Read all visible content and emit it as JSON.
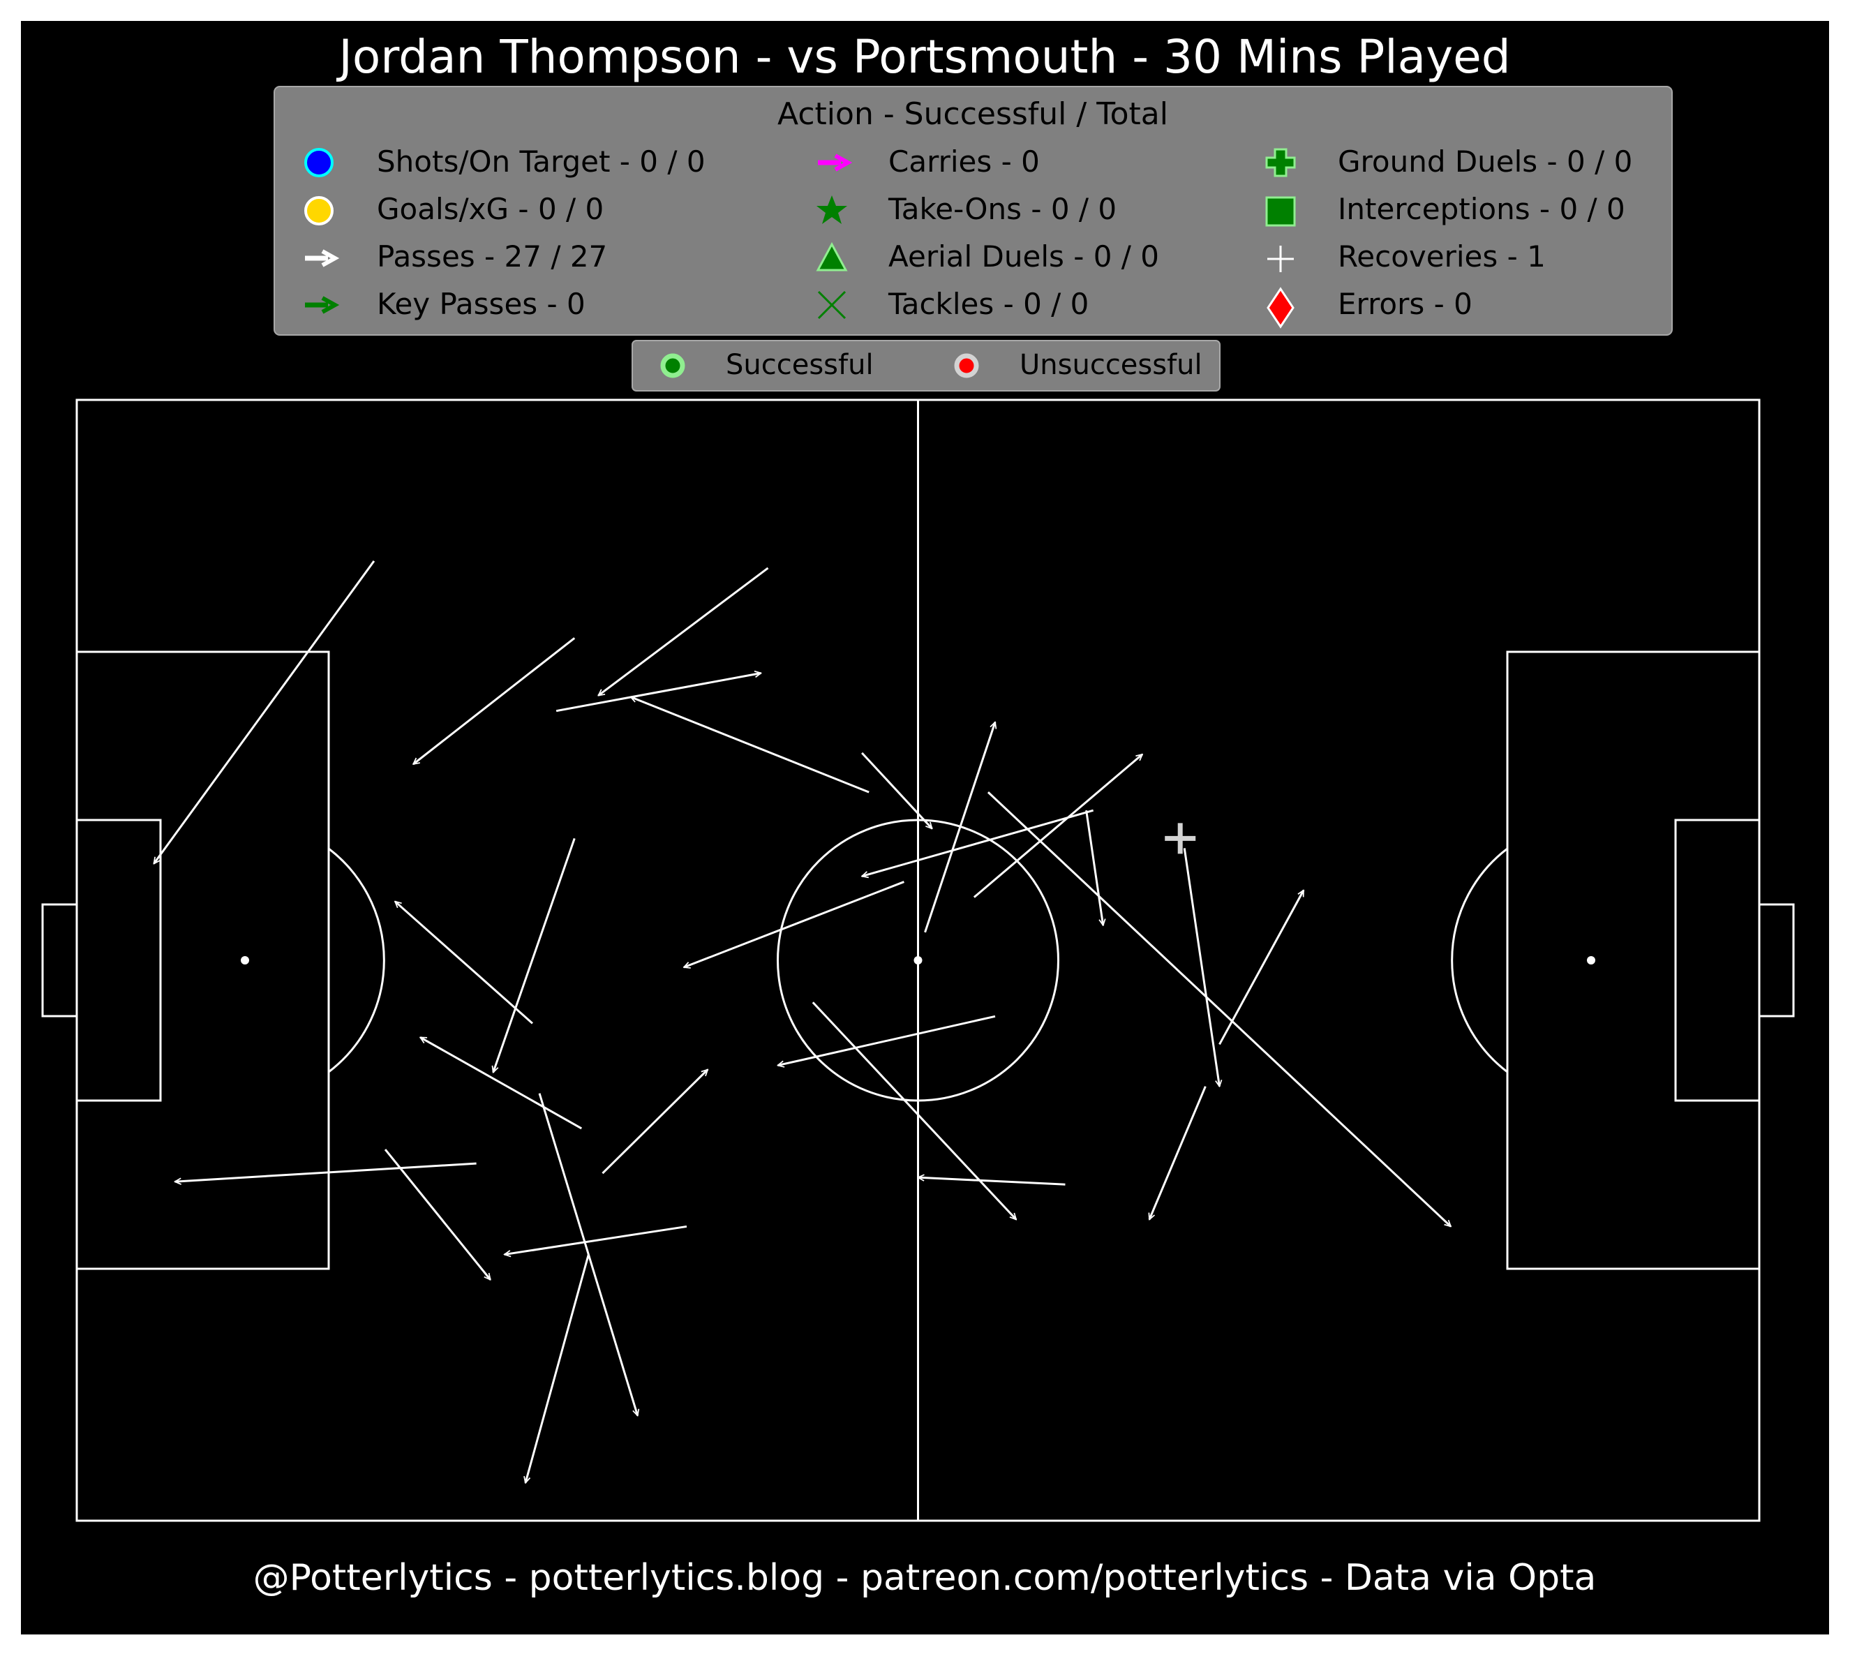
{
  "title": "Jordan Thompson - vs Portsmouth - 30 Mins Played",
  "footer": "@Potterlytics - potterlytics.blog - patreon.com/potterlytics - Data via Opta",
  "legend": {
    "title": "Action - Successful / Total",
    "items": [
      {
        "label": "Shots/On Target - 0 / 0",
        "icon": "blue-circle-icon",
        "color": "#0000ff"
      },
      {
        "label": "Goals/xG - 0 / 0",
        "icon": "gold-circle-icon",
        "color": "#ffd700"
      },
      {
        "label": "Passes - 27 / 27",
        "icon": "white-arrow-icon",
        "color": "#ffffff"
      },
      {
        "label": "Key Passes - 0",
        "icon": "green-arrow-icon",
        "color": "#008000"
      },
      {
        "label": "Carries - 0",
        "icon": "magenta-arrow-icon",
        "color": "#ff00ff"
      },
      {
        "label": "Take-Ons - 0 / 0",
        "icon": "green-star-icon",
        "color": "#008000"
      },
      {
        "label": "Aerial Duels - 0 / 0",
        "icon": "green-triangle-icon",
        "color": "#008000"
      },
      {
        "label": "Tackles - 0 / 0",
        "icon": "green-x-icon",
        "color": "#008000"
      },
      {
        "label": "Ground Duels - 0 / 0",
        "icon": "green-plus-icon",
        "color": "#008000"
      },
      {
        "label": "Interceptions - 0 / 0",
        "icon": "green-square-icon",
        "color": "#008000"
      },
      {
        "label": "Recoveries - 1",
        "icon": "white-plus-icon",
        "color": "#ffffff"
      },
      {
        "label": "Errors - 0",
        "icon": "red-diamond-icon",
        "color": "#ff0000"
      }
    ]
  },
  "outcome_legend": {
    "successful": "Successful",
    "unsuccessful": "Unsuccessful",
    "successful_color": "#008000",
    "unsuccessful_color": "#ff0000"
  },
  "chart_data": {
    "type": "scatter",
    "pitch": {
      "length": 120,
      "width": 80
    },
    "passes": [
      {
        "x1": 21.2,
        "y1": 11.5,
        "x2": 5.5,
        "y2": 33.1
      },
      {
        "x1": 49.3,
        "y1": 12.0,
        "x2": 37.2,
        "y2": 21.1
      },
      {
        "x1": 35.5,
        "y1": 17.0,
        "x2": 24.0,
        "y2": 26.0
      },
      {
        "x1": 34.2,
        "y1": 22.2,
        "x2": 48.8,
        "y2": 19.5
      },
      {
        "x1": 56.5,
        "y1": 28.0,
        "x2": 39.5,
        "y2": 21.2
      },
      {
        "x1": 56.0,
        "y1": 25.2,
        "x2": 61.0,
        "y2": 30.6
      },
      {
        "x1": 60.5,
        "y1": 38.0,
        "x2": 65.5,
        "y2": 23.0
      },
      {
        "x1": 64.0,
        "y1": 35.5,
        "x2": 76.0,
        "y2": 25.3
      },
      {
        "x1": 72.5,
        "y1": 29.3,
        "x2": 56.0,
        "y2": 34.0
      },
      {
        "x1": 72.0,
        "y1": 29.3,
        "x2": 73.2,
        "y2": 37.5
      },
      {
        "x1": 65.0,
        "y1": 28.0,
        "x2": 98.0,
        "y2": 59.0
      },
      {
        "x1": 59.0,
        "y1": 34.4,
        "x2": 43.3,
        "y2": 40.5
      },
      {
        "x1": 35.5,
        "y1": 31.3,
        "x2": 29.7,
        "y2": 48.0
      },
      {
        "x1": 32.5,
        "y1": 44.5,
        "x2": 22.7,
        "y2": 35.8
      },
      {
        "x1": 65.5,
        "y1": 44.0,
        "x2": 50.0,
        "y2": 47.5
      },
      {
        "x1": 52.5,
        "y1": 43.0,
        "x2": 67.0,
        "y2": 58.5
      },
      {
        "x1": 36.0,
        "y1": 52.0,
        "x2": 24.5,
        "y2": 45.5
      },
      {
        "x1": 37.5,
        "y1": 55.2,
        "x2": 45.0,
        "y2": 47.8
      },
      {
        "x1": 28.5,
        "y1": 54.5,
        "x2": 7.0,
        "y2": 55.8
      },
      {
        "x1": 22.0,
        "y1": 53.5,
        "x2": 29.5,
        "y2": 62.8
      },
      {
        "x1": 43.5,
        "y1": 59.0,
        "x2": 30.5,
        "y2": 61.0
      },
      {
        "x1": 33.0,
        "y1": 49.5,
        "x2": 40.0,
        "y2": 72.5
      },
      {
        "x1": 36.5,
        "y1": 61.0,
        "x2": 32.0,
        "y2": 77.3
      },
      {
        "x1": 70.5,
        "y1": 56.0,
        "x2": 60.0,
        "y2": 55.5
      },
      {
        "x1": 80.5,
        "y1": 49.0,
        "x2": 76.5,
        "y2": 58.5
      },
      {
        "x1": 81.5,
        "y1": 46.0,
        "x2": 87.5,
        "y2": 35.0
      },
      {
        "x1": 79.0,
        "y1": 32.0,
        "x2": 81.5,
        "y2": 49.0
      }
    ],
    "recoveries": [
      {
        "x": 78.7,
        "y": 31.3
      }
    ]
  }
}
